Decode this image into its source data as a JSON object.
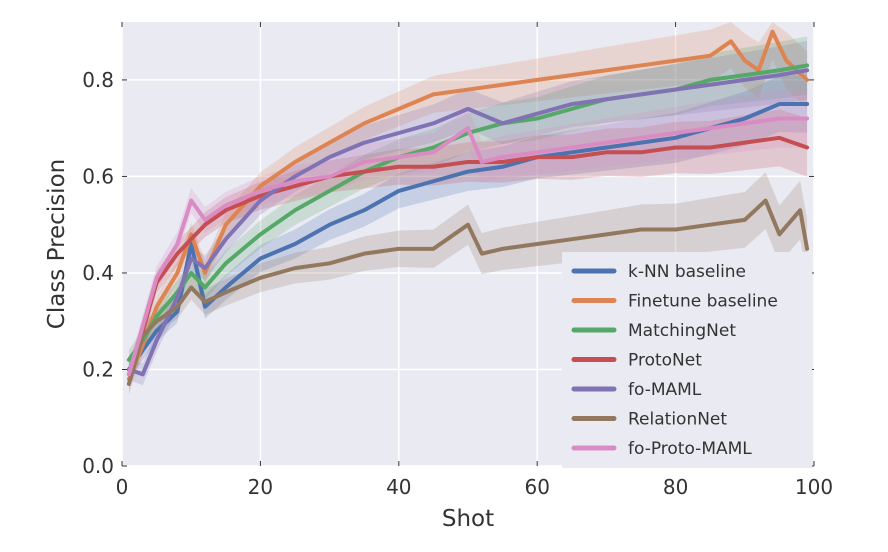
{
  "chart_data": {
    "type": "line",
    "title": "",
    "xlabel": "Shot",
    "ylabel": "Class Precision",
    "xlim": [
      0,
      100
    ],
    "ylim": [
      0,
      0.92
    ],
    "xticks": [
      0,
      20,
      40,
      60,
      80,
      100
    ],
    "yticks": [
      0.0,
      0.2,
      0.4,
      0.6,
      0.8
    ],
    "xtick_labels": [
      "0",
      "20",
      "40",
      "60",
      "80",
      "100"
    ],
    "ytick_labels": [
      "0.0",
      "0.2",
      "0.4",
      "0.6",
      "0.8"
    ],
    "grid": true,
    "legend_position": "lower-right",
    "background_color": "#eaeaf2",
    "series": [
      {
        "name": "k-NN baseline",
        "color": "#4c72b0",
        "x": [
          1,
          3,
          5,
          8,
          10,
          12,
          15,
          20,
          25,
          30,
          35,
          40,
          45,
          50,
          55,
          60,
          65,
          70,
          75,
          80,
          85,
          90,
          95,
          99
        ],
        "y": [
          0.2,
          0.24,
          0.28,
          0.32,
          0.46,
          0.33,
          0.37,
          0.43,
          0.46,
          0.5,
          0.53,
          0.57,
          0.59,
          0.61,
          0.62,
          0.64,
          0.65,
          0.66,
          0.67,
          0.68,
          0.7,
          0.72,
          0.75,
          0.75
        ]
      },
      {
        "name": "Finetune baseline",
        "color": "#dd8452",
        "x": [
          1,
          3,
          5,
          8,
          10,
          12,
          15,
          20,
          25,
          30,
          35,
          40,
          45,
          50,
          55,
          60,
          65,
          70,
          75,
          80,
          85,
          88,
          90,
          92,
          94,
          96,
          99
        ],
        "y": [
          0.18,
          0.25,
          0.33,
          0.4,
          0.48,
          0.4,
          0.5,
          0.58,
          0.63,
          0.67,
          0.71,
          0.74,
          0.77,
          0.78,
          0.79,
          0.8,
          0.81,
          0.82,
          0.83,
          0.84,
          0.85,
          0.88,
          0.84,
          0.82,
          0.9,
          0.84,
          0.8
        ]
      },
      {
        "name": "MatchingNet",
        "color": "#55a868",
        "x": [
          1,
          3,
          5,
          8,
          10,
          12,
          15,
          20,
          25,
          30,
          35,
          40,
          45,
          50,
          55,
          60,
          65,
          70,
          75,
          80,
          85,
          90,
          95,
          99
        ],
        "y": [
          0.22,
          0.26,
          0.31,
          0.36,
          0.4,
          0.37,
          0.42,
          0.48,
          0.53,
          0.57,
          0.61,
          0.64,
          0.66,
          0.69,
          0.71,
          0.72,
          0.74,
          0.76,
          0.77,
          0.78,
          0.8,
          0.81,
          0.82,
          0.83
        ]
      },
      {
        "name": "ProtoNet",
        "color": "#c44e52",
        "x": [
          1,
          3,
          5,
          8,
          10,
          12,
          15,
          20,
          25,
          30,
          35,
          40,
          45,
          50,
          55,
          60,
          65,
          70,
          75,
          80,
          85,
          90,
          95,
          99
        ],
        "y": [
          0.19,
          0.28,
          0.38,
          0.44,
          0.47,
          0.5,
          0.53,
          0.56,
          0.58,
          0.6,
          0.61,
          0.62,
          0.62,
          0.63,
          0.63,
          0.64,
          0.64,
          0.65,
          0.65,
          0.66,
          0.66,
          0.67,
          0.68,
          0.66
        ]
      },
      {
        "name": "fo-MAML",
        "color": "#8172b3",
        "x": [
          1,
          3,
          5,
          8,
          10,
          12,
          15,
          20,
          25,
          30,
          35,
          40,
          45,
          50,
          55,
          60,
          65,
          70,
          75,
          80,
          85,
          90,
          95,
          99
        ],
        "y": [
          0.2,
          0.19,
          0.26,
          0.35,
          0.43,
          0.41,
          0.47,
          0.55,
          0.6,
          0.64,
          0.67,
          0.69,
          0.71,
          0.74,
          0.71,
          0.73,
          0.75,
          0.76,
          0.77,
          0.78,
          0.79,
          0.8,
          0.81,
          0.82
        ]
      },
      {
        "name": "RelationNet",
        "color": "#937860",
        "x": [
          1,
          3,
          5,
          8,
          10,
          12,
          15,
          20,
          25,
          30,
          35,
          40,
          45,
          50,
          52,
          55,
          60,
          65,
          70,
          75,
          80,
          85,
          90,
          93,
          95,
          98,
          99
        ],
        "y": [
          0.17,
          0.27,
          0.3,
          0.33,
          0.37,
          0.34,
          0.36,
          0.39,
          0.41,
          0.42,
          0.44,
          0.45,
          0.45,
          0.5,
          0.44,
          0.45,
          0.46,
          0.47,
          0.48,
          0.49,
          0.49,
          0.5,
          0.51,
          0.55,
          0.48,
          0.53,
          0.45
        ]
      },
      {
        "name": "fo-Proto-MAML",
        "color": "#da8bc3",
        "x": [
          1,
          3,
          5,
          8,
          10,
          12,
          15,
          20,
          25,
          30,
          35,
          40,
          45,
          50,
          52,
          55,
          60,
          65,
          70,
          75,
          80,
          85,
          90,
          95,
          99
        ],
        "y": [
          0.19,
          0.29,
          0.39,
          0.46,
          0.55,
          0.51,
          0.54,
          0.57,
          0.59,
          0.6,
          0.63,
          0.64,
          0.65,
          0.7,
          0.63,
          0.64,
          0.65,
          0.66,
          0.67,
          0.68,
          0.69,
          0.7,
          0.71,
          0.72,
          0.72
        ]
      }
    ]
  }
}
